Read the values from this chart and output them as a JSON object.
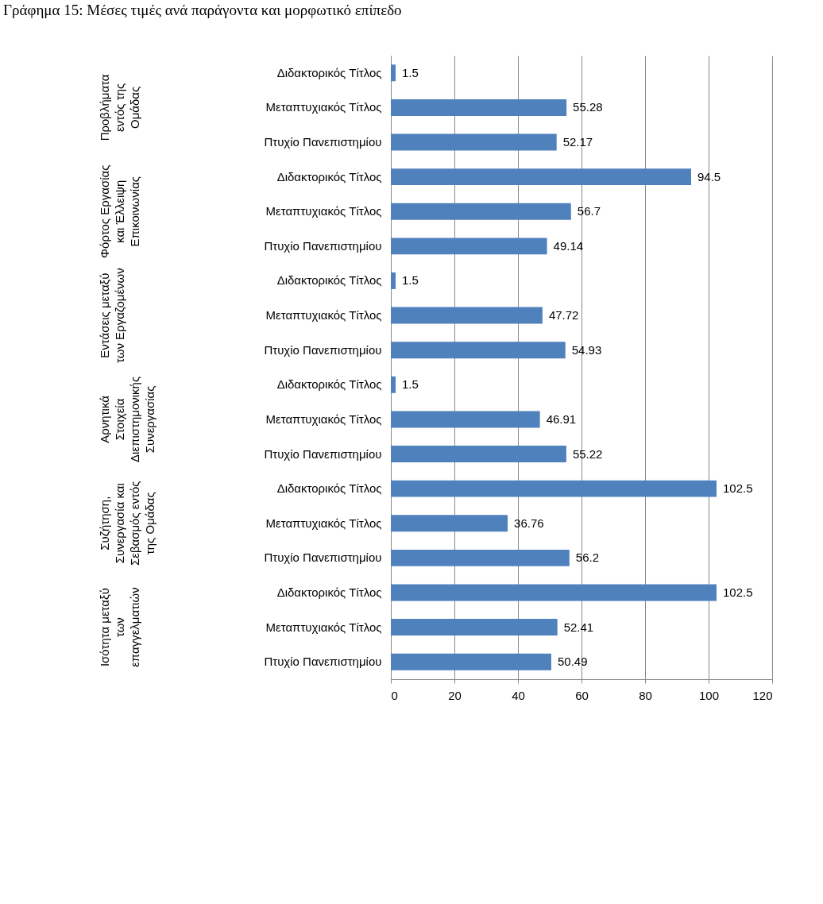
{
  "chart_data": {
    "type": "bar",
    "orientation": "horizontal",
    "title": "Γράφημα 15: Μέσες τιμές ανά παράγοντα και μορφωτικό επίπεδο",
    "categories": [
      "Διδακτορικός Τίτλος",
      "Μεταπτυχιακός Τίτλος",
      "Πτυχίο Πανεπιστημίου",
      "Διδακτορικός Τίτλος",
      "Μεταπτυχιακός Τίτλος",
      "Πτυχίο Πανεπιστημίου",
      "Διδακτορικός Τίτλος",
      "Μεταπτυχιακός Τίτλος",
      "Πτυχίο Πανεπιστημίου",
      "Διδακτορικός Τίτλος",
      "Μεταπτυχιακός Τίτλος",
      "Πτυχίο Πανεπιστημίου",
      "Διδακτορικός Τίτλος",
      "Μεταπτυχιακός Τίτλος",
      "Πτυχίο Πανεπιστημίου",
      "Διδακτορικός Τίτλος",
      "Μεταπτυχιακός Τίτλος",
      "Πτυχίο Πανεπιστημίου"
    ],
    "values": [
      1.5,
      55.28,
      52.17,
      94.5,
      56.7,
      49.14,
      1.5,
      47.72,
      54.93,
      1.5,
      46.91,
      55.22,
      102.5,
      36.76,
      56.2,
      102.5,
      52.41,
      50.49
    ],
    "color": "#4f81bd",
    "annotations": [
      "Προβλήματα εντός της Ομάδας",
      "Φόρτος Εργασίας και Έλλειψη Επικοινωνίας",
      "Εντάσεις μεταξύ των Εργαζομένων",
      "Αρνητικά Στοιχεία Διεπιστημονικής Συνεργασίας",
      "Συζήτηση, Συνεργασία και Σεβασμός εντός της Ομάδας",
      "Ισότητα μεταξύ των επαγγελματιών"
    ],
    "xlim": [
      0,
      120
    ],
    "xticks": [
      0,
      20,
      40,
      60,
      80,
      100,
      120
    ],
    "grid": "x",
    "data_labels": true
  }
}
